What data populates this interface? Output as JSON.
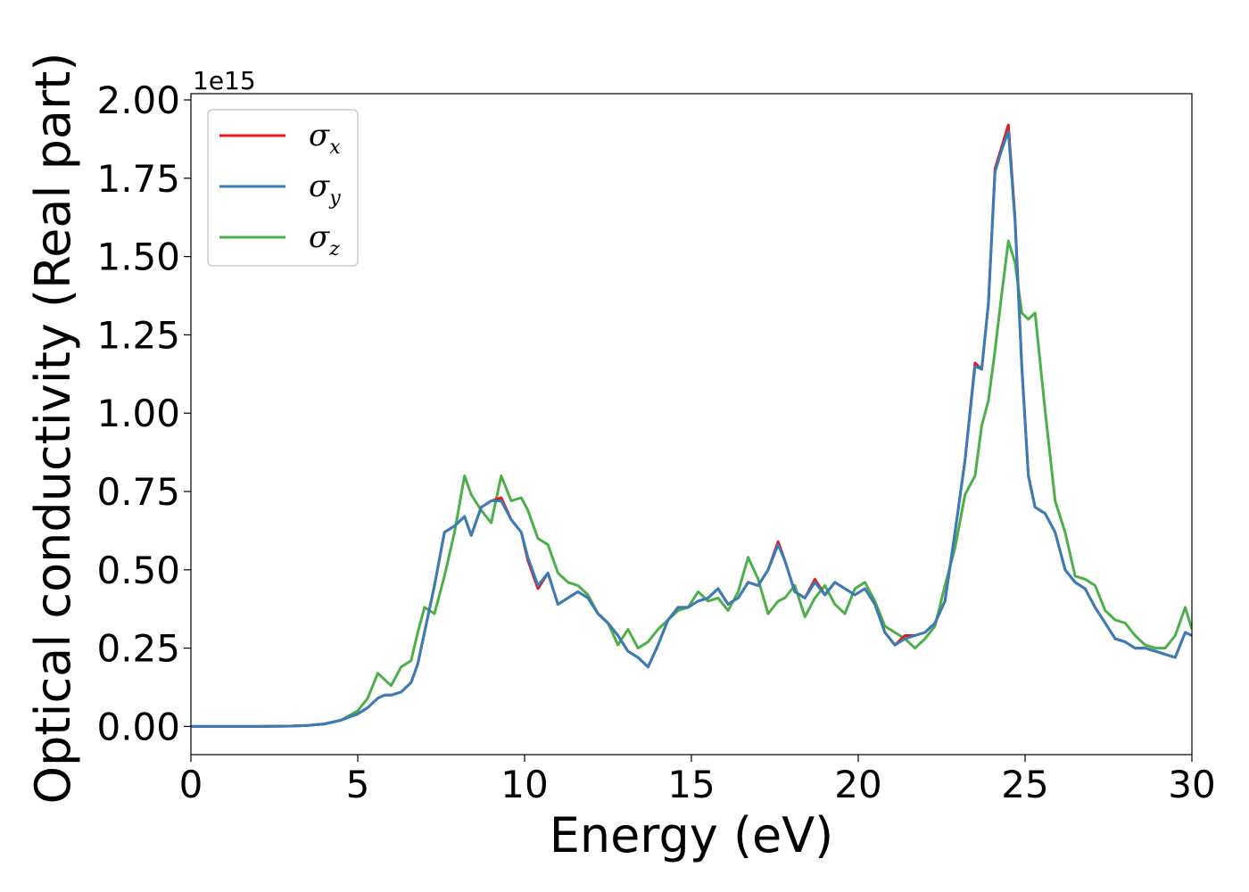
{
  "chart_data": {
    "type": "line",
    "xlabel": "Energy (eV)",
    "ylabel": "Optical conductivity (Real part)",
    "y_offset_label": "1e15",
    "xlim": [
      0,
      30
    ],
    "ylim": [
      -0.09,
      2.02
    ],
    "xticks": [
      0,
      5,
      10,
      15,
      20,
      25,
      30
    ],
    "xtick_labels": [
      "0",
      "5",
      "10",
      "15",
      "20",
      "25",
      "30"
    ],
    "yticks": [
      0.0,
      0.25,
      0.5,
      0.75,
      1.0,
      1.25,
      1.5,
      1.75,
      2.0
    ],
    "ytick_labels": [
      "0.00",
      "0.25",
      "0.50",
      "0.75",
      "1.00",
      "1.25",
      "1.50",
      "1.75",
      "2.00"
    ],
    "grid": false,
    "legend_position": "top-left",
    "series": [
      {
        "name": "σx",
        "legend_symbol": "σ",
        "legend_sub": "x",
        "color": "#e41a1c",
        "x": [
          0,
          1,
          2,
          3,
          3.5,
          4,
          4.5,
          5,
          5.3,
          5.6,
          5.8,
          6,
          6.3,
          6.6,
          6.8,
          7,
          7.3,
          7.6,
          7.9,
          8.2,
          8.4,
          8.7,
          9,
          9.3,
          9.6,
          9.9,
          10.1,
          10.4,
          10.7,
          11,
          11.3,
          11.6,
          11.9,
          12.2,
          12.5,
          12.8,
          13.1,
          13.4,
          13.7,
          14,
          14.3,
          14.6,
          14.9,
          15.2,
          15.5,
          15.8,
          16.1,
          16.4,
          16.7,
          17,
          17.3,
          17.6,
          17.8,
          18.1,
          18.4,
          18.7,
          19,
          19.3,
          19.6,
          19.9,
          20.2,
          20.5,
          20.8,
          21.1,
          21.4,
          21.7,
          22,
          22.3,
          22.6,
          22.9,
          23.2,
          23.5,
          23.7,
          23.9,
          24.1,
          24.3,
          24.5,
          24.7,
          24.9,
          25.1,
          25.3,
          25.6,
          25.9,
          26.2,
          26.5,
          26.8,
          27.1,
          27.4,
          27.7,
          28,
          28.3,
          28.6,
          28.9,
          29.2,
          29.5,
          29.8,
          30
        ],
        "values": [
          0,
          0,
          0,
          0.001,
          0.003,
          0.008,
          0.02,
          0.04,
          0.06,
          0.09,
          0.1,
          0.1,
          0.11,
          0.14,
          0.2,
          0.3,
          0.45,
          0.62,
          0.64,
          0.67,
          0.61,
          0.7,
          0.72,
          0.73,
          0.66,
          0.62,
          0.53,
          0.44,
          0.49,
          0.39,
          0.41,
          0.43,
          0.41,
          0.36,
          0.33,
          0.29,
          0.24,
          0.22,
          0.19,
          0.26,
          0.34,
          0.38,
          0.38,
          0.4,
          0.41,
          0.44,
          0.39,
          0.41,
          0.46,
          0.45,
          0.5,
          0.59,
          0.53,
          0.43,
          0.41,
          0.47,
          0.42,
          0.46,
          0.44,
          0.42,
          0.44,
          0.39,
          0.3,
          0.26,
          0.29,
          0.29,
          0.3,
          0.33,
          0.4,
          0.62,
          0.85,
          1.16,
          1.14,
          1.35,
          1.78,
          1.85,
          1.92,
          1.62,
          1.15,
          0.8,
          0.7,
          0.68,
          0.62,
          0.5,
          0.46,
          0.44,
          0.38,
          0.33,
          0.28,
          0.27,
          0.25,
          0.25,
          0.24,
          0.23,
          0.22,
          0.3,
          0.29
        ]
      },
      {
        "name": "σy",
        "legend_symbol": "σ",
        "legend_sub": "y",
        "color": "#377eb8",
        "x": [
          0,
          1,
          2,
          3,
          3.5,
          4,
          4.5,
          5,
          5.3,
          5.6,
          5.8,
          6,
          6.3,
          6.6,
          6.8,
          7,
          7.3,
          7.6,
          7.9,
          8.2,
          8.4,
          8.7,
          9,
          9.3,
          9.6,
          9.9,
          10.1,
          10.4,
          10.7,
          11,
          11.3,
          11.6,
          11.9,
          12.2,
          12.5,
          12.8,
          13.1,
          13.4,
          13.7,
          14,
          14.3,
          14.6,
          14.9,
          15.2,
          15.5,
          15.8,
          16.1,
          16.4,
          16.7,
          17,
          17.3,
          17.6,
          17.8,
          18.1,
          18.4,
          18.7,
          19,
          19.3,
          19.6,
          19.9,
          20.2,
          20.5,
          20.8,
          21.1,
          21.4,
          21.7,
          22,
          22.3,
          22.6,
          22.9,
          23.2,
          23.5,
          23.7,
          23.9,
          24.1,
          24.3,
          24.5,
          24.7,
          24.9,
          25.1,
          25.3,
          25.6,
          25.9,
          26.2,
          26.5,
          26.8,
          27.1,
          27.4,
          27.7,
          28,
          28.3,
          28.6,
          28.9,
          29.2,
          29.5,
          29.8,
          30
        ],
        "values": [
          0,
          0,
          0,
          0.001,
          0.003,
          0.008,
          0.02,
          0.04,
          0.06,
          0.09,
          0.1,
          0.1,
          0.11,
          0.14,
          0.2,
          0.3,
          0.45,
          0.62,
          0.64,
          0.67,
          0.61,
          0.7,
          0.72,
          0.72,
          0.66,
          0.62,
          0.54,
          0.45,
          0.49,
          0.39,
          0.41,
          0.43,
          0.41,
          0.36,
          0.33,
          0.29,
          0.24,
          0.22,
          0.19,
          0.26,
          0.34,
          0.38,
          0.38,
          0.4,
          0.41,
          0.44,
          0.39,
          0.41,
          0.46,
          0.45,
          0.5,
          0.58,
          0.53,
          0.43,
          0.41,
          0.46,
          0.42,
          0.46,
          0.44,
          0.42,
          0.44,
          0.39,
          0.3,
          0.26,
          0.28,
          0.29,
          0.3,
          0.33,
          0.4,
          0.62,
          0.85,
          1.15,
          1.14,
          1.35,
          1.77,
          1.84,
          1.9,
          1.61,
          1.15,
          0.8,
          0.7,
          0.68,
          0.62,
          0.5,
          0.46,
          0.44,
          0.38,
          0.33,
          0.28,
          0.27,
          0.25,
          0.25,
          0.24,
          0.23,
          0.22,
          0.3,
          0.29
        ]
      },
      {
        "name": "σz",
        "legend_symbol": "σ",
        "legend_sub": "z",
        "color": "#4daf4a",
        "x": [
          0,
          1,
          2,
          3,
          3.5,
          4,
          4.5,
          5,
          5.3,
          5.6,
          5.8,
          6,
          6.3,
          6.6,
          6.8,
          7,
          7.3,
          7.6,
          7.9,
          8.2,
          8.4,
          8.7,
          9,
          9.3,
          9.6,
          9.9,
          10.1,
          10.4,
          10.7,
          11,
          11.3,
          11.6,
          11.9,
          12.2,
          12.5,
          12.8,
          13.1,
          13.4,
          13.7,
          14,
          14.3,
          14.6,
          14.9,
          15.2,
          15.5,
          15.8,
          16.1,
          16.4,
          16.7,
          17,
          17.3,
          17.6,
          17.8,
          18.1,
          18.4,
          18.7,
          19,
          19.3,
          19.6,
          19.9,
          20.2,
          20.5,
          20.8,
          21.1,
          21.4,
          21.7,
          22,
          22.3,
          22.6,
          22.9,
          23.2,
          23.5,
          23.7,
          23.9,
          24.1,
          24.3,
          24.5,
          24.7,
          24.9,
          25.1,
          25.3,
          25.6,
          25.9,
          26.2,
          26.5,
          26.8,
          27.1,
          27.4,
          27.7,
          28,
          28.3,
          28.6,
          28.9,
          29.2,
          29.5,
          29.8,
          30
        ],
        "values": [
          0,
          0,
          0,
          0.001,
          0.003,
          0.008,
          0.02,
          0.05,
          0.09,
          0.17,
          0.15,
          0.13,
          0.19,
          0.21,
          0.3,
          0.38,
          0.36,
          0.48,
          0.62,
          0.8,
          0.74,
          0.69,
          0.65,
          0.8,
          0.72,
          0.73,
          0.69,
          0.6,
          0.58,
          0.49,
          0.46,
          0.45,
          0.42,
          0.36,
          0.33,
          0.26,
          0.31,
          0.25,
          0.27,
          0.31,
          0.34,
          0.37,
          0.38,
          0.43,
          0.4,
          0.41,
          0.37,
          0.43,
          0.54,
          0.47,
          0.36,
          0.4,
          0.41,
          0.45,
          0.35,
          0.41,
          0.45,
          0.39,
          0.36,
          0.44,
          0.46,
          0.4,
          0.32,
          0.3,
          0.28,
          0.25,
          0.28,
          0.32,
          0.45,
          0.57,
          0.74,
          0.8,
          0.96,
          1.04,
          1.2,
          1.38,
          1.55,
          1.48,
          1.32,
          1.3,
          1.32,
          1.01,
          0.72,
          0.62,
          0.48,
          0.47,
          0.45,
          0.37,
          0.34,
          0.33,
          0.29,
          0.26,
          0.25,
          0.25,
          0.29,
          0.38,
          0.31
        ]
      }
    ]
  }
}
